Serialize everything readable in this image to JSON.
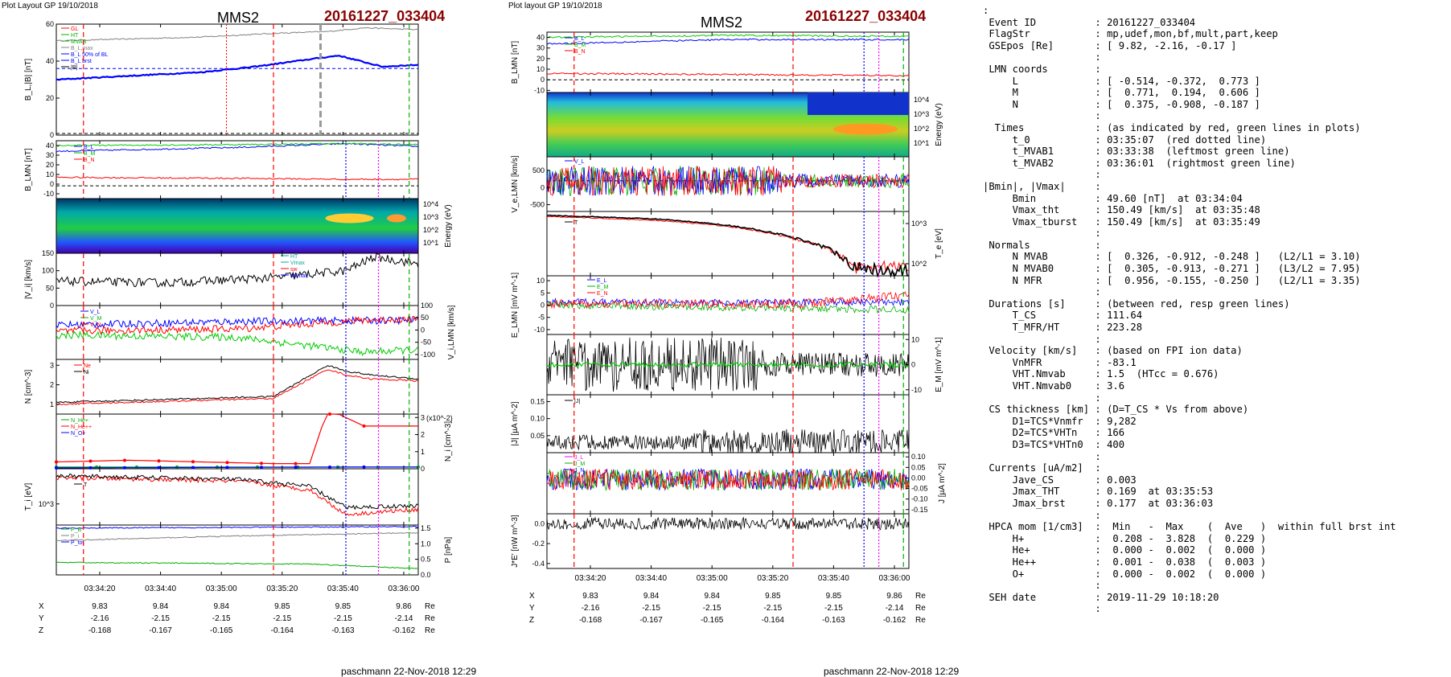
{
  "plot1": {
    "layout_label": "Plot Layout GP 19/10/2018",
    "spacecraft": "MMS2",
    "event": "20161227_033404",
    "footer": "paschmann 22-Nov-2018 12:29",
    "panels": [
      {
        "ylabel": "B_L,|B| [nT]",
        "legend": [
          "GL",
          "HT",
          "MVAB",
          "B_L,max",
          "B_L 50% of BL",
          "B_L brst",
          "|B|"
        ]
      },
      {
        "ylabel": "B_LMN [nT]",
        "legend": [
          "B_L",
          "B_M",
          "B_N"
        ]
      },
      {
        "ylabel": "Energy (eV)",
        "ticks": [
          "10^4",
          "10^3",
          "10^2",
          "10^1"
        ]
      },
      {
        "ylabel": "|V_i| [km/s]",
        "legend": [
          "HT",
          "Vmax",
          "sw",
          "dVmax"
        ]
      },
      {
        "ylabel": "V_i,LMN [km/s]",
        "legend": [
          "V_L",
          "V_M",
          "V_N"
        ]
      },
      {
        "ylabel": "N [cm^-3]",
        "legend": [
          "Ne",
          "Ni"
        ]
      },
      {
        "ylabel": "N_i [cm^-3]",
        "note": "(x10^-2)",
        "legend": [
          "N_He+",
          "N_He++",
          "N_O+"
        ]
      },
      {
        "ylabel": "T_i [eV]",
        "legend": [
          "T"
        ]
      },
      {
        "ylabel": "P [nPa]",
        "legend": [
          "P_B",
          "P_i",
          "P_tot"
        ]
      }
    ]
  },
  "plot2": {
    "layout_label": "Plot layout GP 19/10/2018",
    "spacecraft": "MMS2",
    "event": "20161227_033404",
    "footer": "paschmann 22-Nov-2018 12:29",
    "panels": [
      {
        "ylabel": "B_LMN [nT]",
        "legend": [
          "B_L",
          "B_M",
          "B_N"
        ]
      },
      {
        "ylabel": "Energy (eV)",
        "ticks": [
          "10^4",
          "10^3",
          "10^2",
          "10^1"
        ]
      },
      {
        "ylabel": "V_e,LMN [km/s]",
        "legend": [
          "V_L"
        ]
      },
      {
        "ylabel": "T_e [eV]",
        "legend": [
          "T"
        ]
      },
      {
        "ylabel": "E_LMN [mV m^-1]",
        "legend": [
          "E_L",
          "E_M",
          "E_N"
        ]
      },
      {
        "ylabel": "E_M [mV m^-1]",
        "legend": [
          "E_M"
        ]
      },
      {
        "ylabel": "|J| [µA m^-2]",
        "legend": [
          "|J|"
        ]
      },
      {
        "ylabel": "J [µA m^-2]",
        "legend": [
          "J_L",
          "J_M",
          "J_N"
        ]
      },
      {
        "ylabel": "J*E' [nW m^-3]"
      }
    ]
  },
  "time_axis": {
    "ticks": [
      "03:34:20",
      "03:34:40",
      "03:35:00",
      "03:35:20",
      "03:35:40",
      "03:36:00"
    ],
    "pos_rows": [
      {
        "label": "X",
        "values": [
          "9.83",
          "9.84",
          "9.84",
          "9.85",
          "9.85",
          "9.86"
        ],
        "unit": "Re"
      },
      {
        "label": "Y",
        "values": [
          "-2.16",
          "-2.15",
          "-2.15",
          "-2.15",
          "-2.15",
          "-2.14"
        ],
        "unit": "Re"
      },
      {
        "label": "Z",
        "values": [
          "-0.168",
          "-0.167",
          "-0.165",
          "-0.164",
          "-0.163",
          "-0.162"
        ],
        "unit": "Re"
      }
    ]
  },
  "summary_lines": [
    ":",
    " Event ID          : 20161227_033404",
    " FlagStr           : mp,udef,mon,bf,mult,part,keep",
    " GSEpos [Re]       : [ 9.82, -2.16, -0.17 ]",
    "                   :",
    " LMN coords        :",
    "     L             : [ -0.514, -0.372,  0.773 ]",
    "     M             : [  0.771,  0.194,  0.606 ]",
    "     N             : [  0.375, -0.908, -0.187 ]",
    "                   :",
    "  Times            : (as indicated by red, green lines in plots)",
    "     t_0           : 03:35:07  (red dotted line)",
    "     t_MVAB1       : 03:33:38  (leftmost green line)",
    "     t_MVAB2       : 03:36:01  (rightmost green line)",
    "                   :",
    "|Bmin|, |Vmax|     :",
    "     Bmin          : 49.60 [nT]  at 03:34:04",
    "     Vmax_tht      : 150.49 [km/s]  at 03:35:48",
    "     Vmax_tburst   : 150.49 [km/s]  at 03:35:49",
    "                   :",
    " Normals           :",
    "     N MVAB        : [  0.326, -0.912, -0.248 ]   (L2/L1 = 3.10)",
    "     N MVAB0       : [  0.305, -0.913, -0.271 ]   (L3/L2 = 7.95)",
    "     N MFR         : [  0.956, -0.155, -0.250 ]   (L2/L1 = 3.35)",
    "                   :",
    " Durations [s]     : (between red, resp green lines)",
    "     T_CS          : 111.64",
    "     T_MFR/HT      : 223.28",
    "                   :",
    " Velocity [km/s]   : (based on FPI ion data)",
    "     VnMFR         : -83.1",
    "     VHT.Nmvab     : 1.5  (HTcc = 0.676)",
    "     VHT.Nmvab0    : 3.6",
    "                   :",
    " CS thickness [km] : (D=T_CS * Vs from above)",
    "     D1=TCS*Vnmfr  : 9,282",
    "     D2=TCS*VHTn   : 166",
    "     D3=TCS*VHTn0  : 400",
    "                   :",
    " Currents [uA/m2]  :",
    "     Jave_CS       : 0.003",
    "     Jmax_THT      : 0.169  at 03:35:53",
    "     Jmax_brst     : 0.177  at 03:36:03",
    "                   :",
    " HPCA mom [1/cm3]  :  Min   -  Max    (  Ave   )  within full brst int",
    "     H+            :  0.208 -  3.828  (  0.229 )",
    "     He+           :  0.000 -  0.002  (  0.000 )",
    "     He++          :  0.001 -  0.038  (  0.003 )",
    "     O+            :  0.000 -  0.002  (  0.000 )",
    "                   :",
    " SEH date          : 2019-11-29 10:18:20",
    "                   :"
  ],
  "chart_data": [
    {
      "type": "line",
      "title": "MMS2 20161227_033404",
      "x_ticks": [
        "03:34:20",
        "03:34:40",
        "03:35:00",
        "03:35:20",
        "03:35:40",
        "03:36:00"
      ],
      "panels": [
        {
          "name": "B_L,|B| [nT]",
          "ylim": [
            0,
            60
          ],
          "yticks": [
            0,
            20,
            40,
            60
          ],
          "series": [
            {
              "name": "|B|",
              "color": "#808080",
              "x": [
                0,
                0.2,
                0.4,
                0.6,
                0.75,
                0.85,
                1
              ],
              "y": [
                51,
                52,
                53,
                55,
                56,
                58,
                57
              ]
            },
            {
              "name": "B_L brst",
              "color": "#0000ff",
              "x": [
                0,
                0.2,
                0.4,
                0.55,
                0.7,
                0.78,
                0.9,
                1
              ],
              "y": [
                30,
                32,
                34,
                37,
                41,
                43,
                37,
                38
              ]
            }
          ]
        },
        {
          "name": "B_LMN [nT]",
          "ylim": [
            -15,
            45
          ],
          "yticks": [
            -10,
            0,
            10,
            20,
            30,
            40
          ],
          "series": [
            {
              "name": "B_L",
              "color": "#0000ff",
              "x": [
                0,
                0.5,
                0.8,
                1
              ],
              "y": [
                34,
                38,
                42,
                39
              ]
            },
            {
              "name": "B_M",
              "color": "#00cc00",
              "x": [
                0,
                0.5,
                0.8,
                1
              ],
              "y": [
                40,
                41,
                42,
                41
              ]
            },
            {
              "name": "B_N",
              "color": "#ff0000",
              "x": [
                0,
                0.5,
                0.8,
                1
              ],
              "y": [
                7,
                6,
                5,
                5
              ]
            }
          ]
        },
        {
          "name": "|V_i| [km/s]",
          "ylim": [
            0,
            150
          ],
          "yticks": [
            0,
            50,
            100,
            150
          ],
          "series": [
            {
              "name": "V",
              "color": "#000000",
              "x": [
                0,
                0.3,
                0.6,
                0.8,
                0.88,
                1
              ],
              "y": [
                70,
                65,
                80,
                100,
                140,
                120
              ]
            }
          ]
        },
        {
          "name": "V_i,LMN [km/s]",
          "ylim": [
            -120,
            100
          ],
          "yticks": [
            -100,
            -50,
            0,
            50,
            100
          ],
          "series": [
            {
              "name": "V_L",
              "color": "#0000ff",
              "x": [
                0,
                0.5,
                1
              ],
              "y": [
                20,
                35,
                40
              ]
            },
            {
              "name": "V_M",
              "color": "#00cc00",
              "x": [
                0,
                0.5,
                0.85,
                1
              ],
              "y": [
                -20,
                -30,
                -90,
                -80
              ]
            },
            {
              "name": "V_N",
              "color": "#ff0000",
              "x": [
                0,
                0.5,
                0.85,
                1
              ],
              "y": [
                -5,
                5,
                40,
                45
              ]
            }
          ]
        },
        {
          "name": "N [cm^-3]",
          "ylim": [
            0.5,
            3.3
          ],
          "yticks": [
            1,
            2,
            3
          ],
          "series": [
            {
              "name": "Ne",
              "color": "#ff0000",
              "x": [
                0,
                0.6,
                0.75,
                0.8,
                0.87,
                1
              ],
              "y": [
                1.0,
                1.3,
                2.8,
                2.5,
                2.3,
                2.2
              ]
            },
            {
              "name": "Ni",
              "color": "#000000",
              "x": [
                0,
                0.6,
                0.75,
                0.8,
                0.87,
                1
              ],
              "y": [
                1.1,
                1.4,
                3.0,
                2.7,
                2.5,
                2.3
              ]
            }
          ]
        },
        {
          "name": "N_i (x10^-2) [cm^-3]",
          "ylim": [
            0,
            3.2
          ],
          "yticks": [
            0,
            1,
            2,
            3
          ],
          "series": [
            {
              "name": "N_He+",
              "color": "#00aa00",
              "x": [
                0,
                1
              ],
              "y": [
                0.1,
                0.1
              ]
            },
            {
              "name": "N_He++",
              "color": "#ff0000",
              "x": [
                0,
                0.2,
                0.4,
                0.6,
                0.7,
                0.75,
                0.85
              ],
              "y": [
                0.4,
                0.5,
                0.4,
                0.3,
                0.3,
                3.5,
                2.5
              ]
            },
            {
              "name": "N_O+",
              "color": "#0000ff",
              "x": [
                0,
                0.85
              ],
              "y": [
                0.05,
                0.1
              ]
            }
          ]
        },
        {
          "name": "T_i [eV]",
          "ylim": [
            400,
            2000
          ],
          "yticks": [
            1000
          ],
          "series": [
            {
              "name": "T",
              "color": "#000000",
              "x": [
                0,
                0.5,
                0.7,
                0.8,
                1
              ],
              "y": [
                1800,
                1700,
                1500,
                900,
                950
              ]
            }
          ]
        },
        {
          "name": "P [nPa]",
          "ylim": [
            0,
            1.6
          ],
          "yticks": [
            0,
            0.5,
            1.0,
            1.5
          ],
          "series": [
            {
              "name": "P_B",
              "color": "#0000ff",
              "x": [
                0,
                1
              ],
              "y": [
                1.5,
                1.55
              ]
            },
            {
              "name": "P_i",
              "color": "#808080",
              "x": [
                0,
                0.5,
                1
              ],
              "y": [
                1.1,
                1.25,
                1.35
              ]
            },
            {
              "name": "P_tot",
              "color": "#00aa00",
              "x": [
                0,
                0.7,
                1
              ],
              "y": [
                0.4,
                0.35,
                0.2
              ]
            }
          ]
        }
      ]
    },
    {
      "type": "line",
      "title": "MMS2 20161227_033404",
      "x_ticks": [
        "03:34:20",
        "03:34:40",
        "03:35:00",
        "03:35:20",
        "03:35:40",
        "03:36:00"
      ],
      "panels": [
        {
          "name": "B_LMN [nT]",
          "ylim": [
            -12,
            45
          ],
          "yticks": [
            -10,
            0,
            10,
            20,
            30,
            40
          ],
          "series": [
            {
              "name": "B_L",
              "color": "#0000ff",
              "x": [
                0,
                0.5,
                1
              ],
              "y": [
                34,
                38,
                38
              ]
            },
            {
              "name": "B_M",
              "color": "#00cc00",
              "x": [
                0,
                0.5,
                1
              ],
              "y": [
                40,
                42,
                41
              ]
            },
            {
              "name": "B_N",
              "color": "#ff0000",
              "x": [
                0,
                1
              ],
              "y": [
                6,
                4
              ]
            }
          ]
        },
        {
          "name": "V_e,LMN [km/s]",
          "ylim": [
            -700,
            900
          ],
          "yticks": [
            -500,
            0,
            500
          ]
        },
        {
          "name": "T_e [eV]",
          "ylim": [
            50,
            2000
          ],
          "yticks": [
            100,
            1000
          ],
          "series": [
            {
              "name": "T",
              "color": "#000000",
              "x": [
                0,
                0.3,
                0.5,
                0.7,
                0.85,
                1
              ],
              "y": [
                1600,
                1300,
                900,
                400,
                80,
                70
              ]
            }
          ]
        },
        {
          "name": "E_LMN [mV m^-1]",
          "ylim": [
            -12,
            12
          ],
          "yticks": [
            -10,
            -5,
            0,
            5,
            10
          ]
        },
        {
          "name": "E_M [mV m^-1]",
          "ylim": [
            -12,
            12
          ],
          "yticks": [
            -10,
            0,
            10
          ]
        },
        {
          "name": "|J| [µA m^-2]",
          "ylim": [
            0,
            0.17
          ],
          "yticks": [
            0.05,
            0.1,
            0.15
          ]
        },
        {
          "name": "J [µA m^-2]",
          "ylim": [
            -0.17,
            0.12
          ],
          "yticks": [
            -0.15,
            -0.1,
            -0.05,
            0,
            0.05,
            0.1
          ]
        },
        {
          "name": "J*E' [nW m^-3]",
          "ylim": [
            -0.45,
            0.1
          ],
          "yticks": [
            -0.4,
            -0.2,
            0.0
          ]
        }
      ]
    }
  ],
  "colors": {
    "event_red": "#8b0000",
    "mark_red": "#ff0000",
    "mark_green": "#00b000",
    "mark_blue": "#0000ff",
    "mark_magenta": "#ff00ff"
  }
}
